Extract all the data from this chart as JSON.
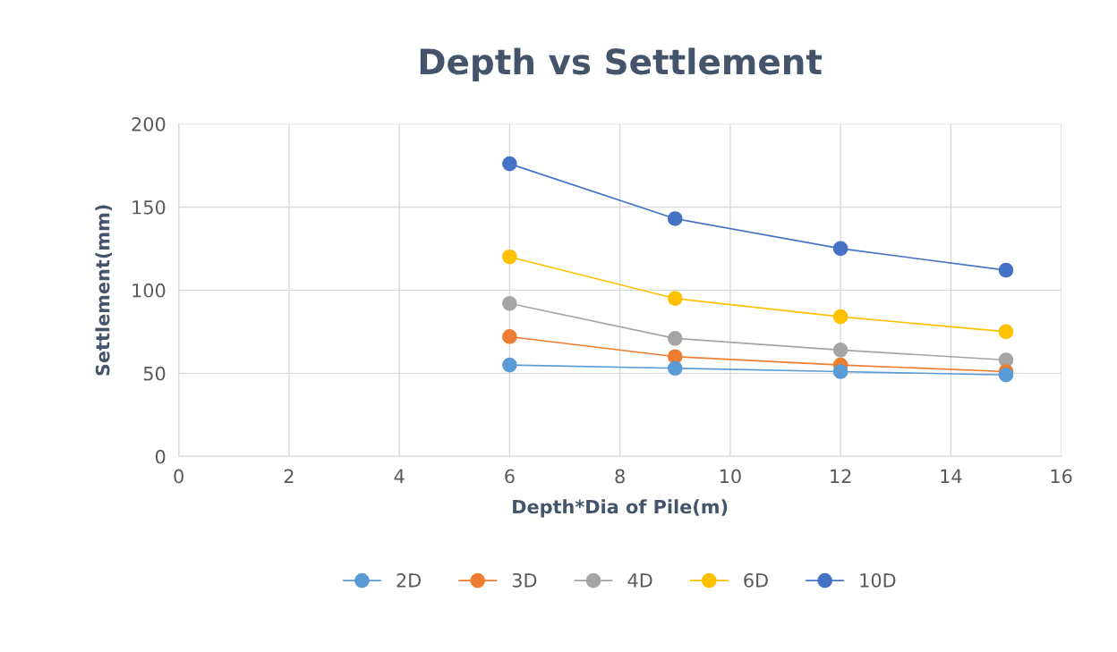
{
  "chart_data": {
    "type": "line",
    "title": "Depth vs Settlement",
    "xlabel": "Depth*Dia of Pile(m)",
    "ylabel": "Settlement(mm)",
    "x": [
      6,
      9,
      12,
      15
    ],
    "series": [
      {
        "name": "2D",
        "color": "#5b9bd5",
        "values": [
          55,
          53,
          51,
          49
        ]
      },
      {
        "name": "3D",
        "color": "#ed7d31",
        "values": [
          72,
          60,
          55,
          51
        ]
      },
      {
        "name": "4D",
        "color": "#a5a5a5",
        "values": [
          92,
          71,
          64,
          58
        ]
      },
      {
        "name": "6D",
        "color": "#ffc000",
        "values": [
          120,
          95,
          84,
          75
        ]
      },
      {
        "name": "10D",
        "color": "#4472c4",
        "values": [
          176,
          143,
          125,
          112
        ]
      }
    ],
    "xlim": [
      0,
      16
    ],
    "xticks": [
      0,
      2,
      4,
      6,
      8,
      10,
      12,
      14,
      16
    ],
    "ylim": [
      0,
      200
    ],
    "yticks": [
      0,
      50,
      100,
      150,
      200
    ],
    "grid": true,
    "legend": "bottom",
    "marker": "circle",
    "line_style": "solid"
  }
}
